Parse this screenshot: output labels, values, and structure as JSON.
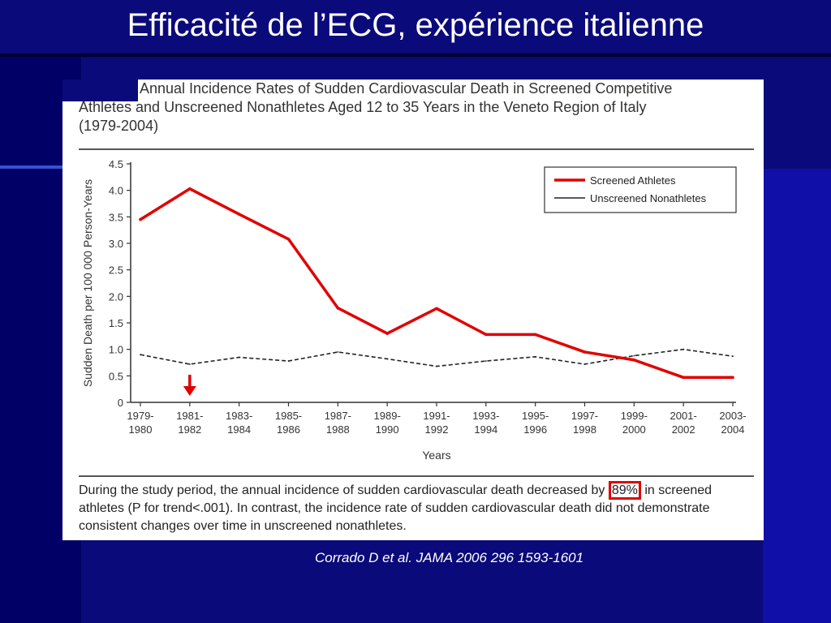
{
  "slide": {
    "title": "Efficacité de l’ECG, expérience italienne",
    "citation": "Corrado D et al. JAMA 2006 296 1593-1601"
  },
  "figure": {
    "title_line1": "Annual Incidence Rates of Sudden Cardiovascular Death in Screened Competitive",
    "title_line2": "Athletes and Unscreened Nonathletes Aged 12 to 35 Years in the Veneto Region of Italy",
    "title_line3": "(1979-2004)",
    "caption_before": "During the study period, the annual incidence of sudden cardiovascular death decreased by",
    "caption_highlight": "89%",
    "caption_after": "in screened athletes (P for trend<.001). In contrast, the incidence rate of sudden cardiovascular death did not demonstrate consistent changes over time in unscreened nonathletes."
  },
  "chart_data": {
    "type": "line",
    "xlabel": "Years",
    "ylabel": "Sudden Death per 100 000 Person-Years",
    "ylim": [
      0,
      4.5
    ],
    "yticks": [
      "0",
      "0.5",
      "1.0",
      "1.5",
      "2.0",
      "2.5",
      "3.0",
      "3.5",
      "4.0",
      "4.5"
    ],
    "categories": [
      [
        "1979-",
        "1980"
      ],
      [
        "1981-",
        "1982"
      ],
      [
        "1983-",
        "1984"
      ],
      [
        "1985-",
        "1986"
      ],
      [
        "1987-",
        "1988"
      ],
      [
        "1989-",
        "1990"
      ],
      [
        "1991-",
        "1992"
      ],
      [
        "1993-",
        "1994"
      ],
      [
        "1995-",
        "1996"
      ],
      [
        "1997-",
        "1998"
      ],
      [
        "1999-",
        "2000"
      ],
      [
        "2001-",
        "2002"
      ],
      [
        "2003-",
        "2004"
      ]
    ],
    "series": [
      {
        "name": "Screened Athletes",
        "color": "#e00000",
        "style": "solid",
        "values": [
          3.45,
          4.03,
          3.55,
          3.08,
          1.78,
          1.3,
          1.77,
          1.28,
          1.28,
          0.95,
          0.8,
          0.47,
          0.47
        ]
      },
      {
        "name": "Unscreened Nonathletes",
        "color": "#222222",
        "style": "dashed",
        "values": [
          0.9,
          0.72,
          0.85,
          0.78,
          0.95,
          0.82,
          0.68,
          0.78,
          0.86,
          0.72,
          0.88,
          1.0,
          0.87
        ]
      }
    ],
    "legend_position": "top-right",
    "annotation": "red down arrow at 1981-1982"
  }
}
